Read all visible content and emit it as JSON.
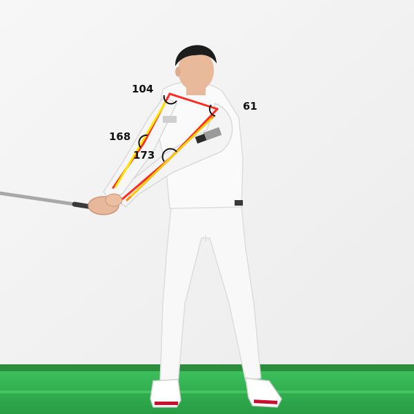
{
  "overlay": {
    "angles": [
      {
        "id": "shoulder",
        "value": "104"
      },
      {
        "id": "right-shoulder",
        "value": "61"
      },
      {
        "id": "left-elbow",
        "value": "168"
      },
      {
        "id": "right-elbow",
        "value": "173"
      }
    ],
    "colors": {
      "outline": "#ff2a1f",
      "left_arm": "#ffe600",
      "right_arm": "#ff8c00",
      "arc": "#111111"
    }
  },
  "scene": {
    "subject": "golfer-backswing",
    "colors": {
      "wall": "#f4f4f4",
      "floor_mat": "#2fae4e",
      "outfit": "#f7f7f7",
      "hair": "#1a1a1a",
      "skin": "#e8b89a",
      "club_shaft": "#9a9a9a"
    }
  }
}
